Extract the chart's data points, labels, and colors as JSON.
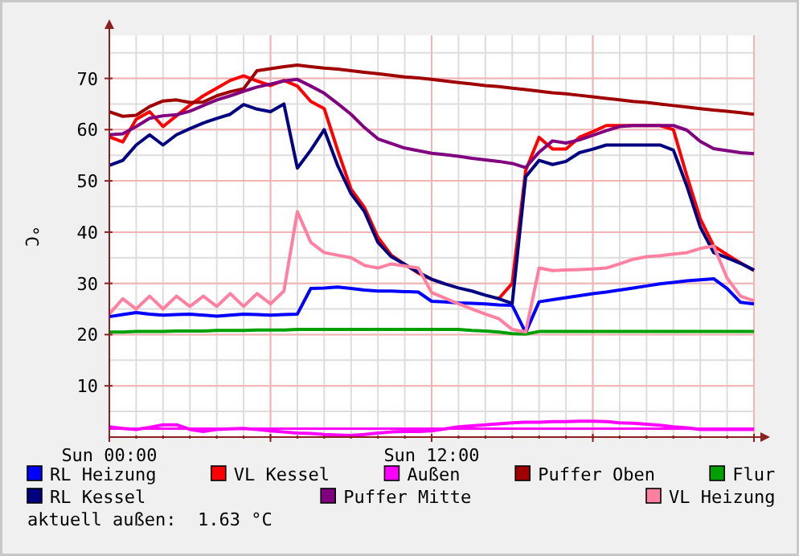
{
  "chart_data": {
    "type": "line",
    "ylabel": "°C",
    "ylim": [
      0,
      78.4
    ],
    "categories": [
      "Sun 00:00",
      null,
      null,
      null,
      null,
      null,
      null,
      null,
      null,
      null,
      null,
      null,
      null,
      null,
      null,
      null,
      null,
      null,
      null,
      null,
      null,
      null,
      null,
      null,
      "Sun 12:00",
      null,
      null,
      null,
      null,
      null,
      null,
      null,
      null,
      null,
      null,
      null,
      null,
      null,
      null,
      null,
      null,
      null,
      null,
      null,
      null,
      null,
      null,
      null,
      null
    ],
    "yticks": [
      10,
      20,
      30,
      40,
      50,
      60,
      70
    ],
    "grid": true,
    "legend": "bottom",
    "line_style": "solid",
    "marker": "none",
    "ref_lines": [
      {
        "axis": "y",
        "value": 1.63,
        "color": "#ff00ff"
      }
    ],
    "annotations": [
      "aktuell außen:  1.63 °C"
    ],
    "series": [
      {
        "name": "RL Heizung",
        "color": "#0000ff",
        "values": [
          23.5,
          23.9,
          24.3,
          24,
          23.8,
          23.9,
          24,
          23.8,
          23.6,
          23.8,
          24,
          23.9,
          23.8,
          23.9,
          24,
          29,
          29.1,
          29.3,
          29,
          28.7,
          28.5,
          28.5,
          28.4,
          28.3,
          26.5,
          26.4,
          26.2,
          26.1,
          26,
          25.8,
          25.7,
          20.4,
          26.4,
          26.8,
          27.2,
          27.6,
          28,
          28.3,
          28.7,
          29.1,
          29.5,
          29.9,
          30.2,
          30.5,
          30.7,
          30.9,
          29,
          26.3,
          26
        ]
      },
      {
        "name": "VL Kessel",
        "color": "#ff0000",
        "values": [
          58.6,
          57.6,
          62,
          63.5,
          60.6,
          62.7,
          64.8,
          66.6,
          68.1,
          69.6,
          70.5,
          69.5,
          68.6,
          69.6,
          68.5,
          65.5,
          64.1,
          56,
          48.4,
          44.8,
          39,
          35.5,
          33.7,
          32,
          30.8,
          29.9,
          null,
          null,
          null,
          27,
          30,
          52,
          58.5,
          56.2,
          56.2,
          58.5,
          59.6,
          60.8,
          60.8,
          60.8,
          60.8,
          60.8,
          60,
          51,
          42.6,
          37.3,
          35.6,
          34,
          32.5
        ]
      },
      {
        "name": "Außen",
        "color": "#ff00ff",
        "values": [
          2,
          1.7,
          1.5,
          1.9,
          2.4,
          2.4,
          1.5,
          1.1,
          1.5,
          1.6,
          1.7,
          1.5,
          1.2,
          1,
          0.8,
          0.7,
          0.5,
          0.4,
          0.3,
          0.5,
          0.8,
          1,
          1.1,
          1.1,
          1.2,
          1.6,
          2,
          2.2,
          2.4,
          2.6,
          2.8,
          2.9,
          2.9,
          3,
          3,
          3.1,
          3.1,
          3,
          2.8,
          2.7,
          2.5,
          2.3,
          2,
          1.8,
          1.5,
          1.5,
          1.5,
          1.5,
          1.5
        ]
      },
      {
        "name": "Puffer Oben",
        "color": "#a00000",
        "values": [
          63.5,
          62.6,
          62.8,
          64.5,
          65.6,
          65.8,
          65.3,
          65.4,
          66.6,
          67.4,
          68,
          71.5,
          71.9,
          72.3,
          72.6,
          72.3,
          72,
          71.8,
          71.5,
          71.2,
          70.9,
          70.6,
          70.3,
          70.1,
          69.8,
          69.5,
          69.2,
          68.9,
          68.6,
          68.4,
          68.1,
          67.8,
          67.5,
          67.2,
          67,
          66.7,
          66.4,
          66.1,
          65.8,
          65.5,
          65.3,
          65,
          64.7,
          64.4,
          64.1,
          63.8,
          63.6,
          63.3,
          63
        ]
      },
      {
        "name": "Flur",
        "color": "#00a000",
        "values": [
          20.5,
          20.5,
          20.6,
          20.6,
          20.6,
          20.7,
          20.7,
          20.7,
          20.8,
          20.8,
          20.8,
          20.9,
          20.9,
          20.9,
          21,
          21,
          21,
          21,
          21,
          21,
          21,
          21,
          21,
          21,
          21,
          21,
          21,
          20.8,
          20.7,
          20.5,
          20.2,
          20.1,
          20.6,
          20.6,
          20.6,
          20.6,
          20.6,
          20.6,
          20.6,
          20.6,
          20.6,
          20.6,
          20.6,
          20.6,
          20.6,
          20.6,
          20.6,
          20.6,
          20.6
        ]
      },
      {
        "name": "RL Kessel",
        "color": "#000080",
        "values": [
          53,
          54,
          57,
          59,
          57,
          59,
          60.2,
          61.3,
          62.2,
          63,
          64.9,
          64,
          63.5,
          65,
          52.5,
          56,
          60,
          53,
          47.5,
          44,
          38,
          35.2,
          33.7,
          32.2,
          30.8,
          29.9,
          29.1,
          28.5,
          27.7,
          27,
          26.1,
          50.8,
          54,
          53.2,
          53.8,
          55.5,
          56.2,
          57,
          57,
          57,
          57,
          57,
          56,
          49,
          41,
          36,
          35,
          33.9,
          32.6
        ]
      },
      {
        "name": "Puffer Mitte",
        "color": "#800080",
        "values": [
          59,
          59.2,
          60.6,
          62.2,
          62.7,
          62.9,
          63.6,
          64.7,
          65.8,
          66.6,
          67.5,
          68.3,
          68.9,
          69.5,
          69.8,
          68.5,
          67.1,
          65.1,
          63,
          60.4,
          58.2,
          57.3,
          56.4,
          55.9,
          55.4,
          55.1,
          54.8,
          54.4,
          54.1,
          53.8,
          53.4,
          52.6,
          55.6,
          57.8,
          57.4,
          58,
          58.9,
          59.8,
          60.6,
          60.8,
          60.8,
          60.8,
          60.8,
          59.9,
          57.7,
          56.3,
          55.9,
          55.5,
          55.3
        ]
      },
      {
        "name": "VL Heizung",
        "color": "#ff80a0",
        "values": [
          24,
          27,
          25,
          27.5,
          25,
          27.5,
          25.5,
          27.5,
          25.5,
          28,
          25.5,
          28,
          26,
          28.5,
          44,
          38,
          36,
          35.5,
          35,
          33.5,
          33,
          33.8,
          33.4,
          33,
          28.2,
          27.1,
          26,
          25,
          24,
          23.1,
          21,
          20.5,
          33,
          32.5,
          32.6,
          32.7,
          32.8,
          33,
          33.8,
          34.7,
          35.2,
          35.4,
          35.7,
          36,
          36.8,
          37.3,
          31,
          27.5,
          26.6
        ]
      }
    ]
  }
}
